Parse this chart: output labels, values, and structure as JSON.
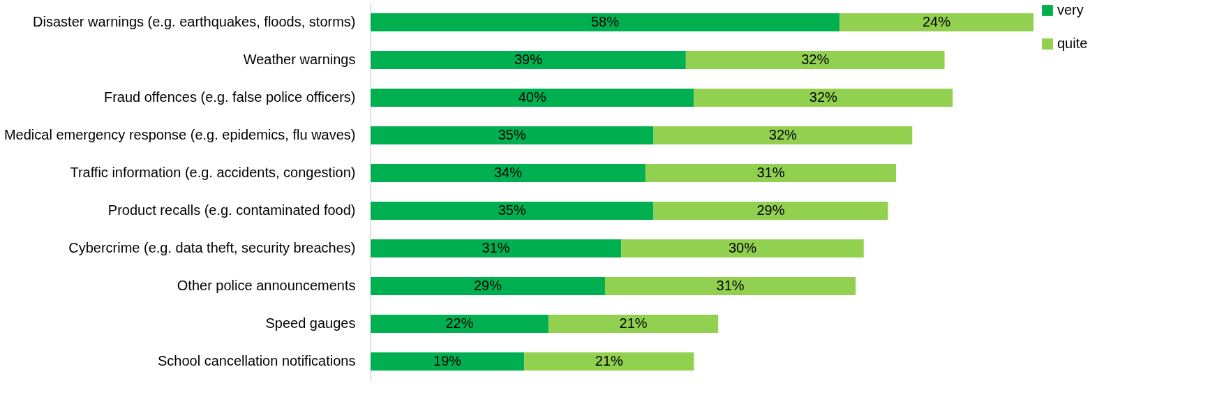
{
  "chart_data": {
    "type": "bar",
    "orientation": "horizontal",
    "stacked": true,
    "legend": "top right",
    "categories": [
      "Disaster warnings (e.g. earthquakes, floods, storms)",
      "Weather warnings",
      "Fraud offences (e.g. false police officers)",
      "Medical emergency response (e.g. epidemics, flu waves)",
      "Traffic information (e.g. accidents, congestion)",
      "Product recalls (e.g. contaminated food)",
      "Cybercrime (e.g. data theft, security breaches)",
      "Other police announcements",
      "Speed gauges",
      "School cancellation notifications"
    ],
    "series": [
      {
        "name": "very",
        "color": "#00b050",
        "values": [
          58,
          39,
          40,
          35,
          34,
          35,
          31,
          29,
          22,
          19
        ],
        "value_labels": [
          "58%",
          "39%",
          "40%",
          "35%",
          "34%",
          "35%",
          "31%",
          "29%",
          "22%",
          "19%"
        ]
      },
      {
        "name": "quite",
        "color": "#92d050",
        "values": [
          24,
          32,
          32,
          32,
          31,
          29,
          30,
          31,
          21,
          21
        ],
        "value_labels": [
          "24%",
          "32%",
          "32%",
          "32%",
          "31%",
          "29%",
          "30%",
          "31%",
          "21%",
          "21%"
        ]
      }
    ]
  }
}
